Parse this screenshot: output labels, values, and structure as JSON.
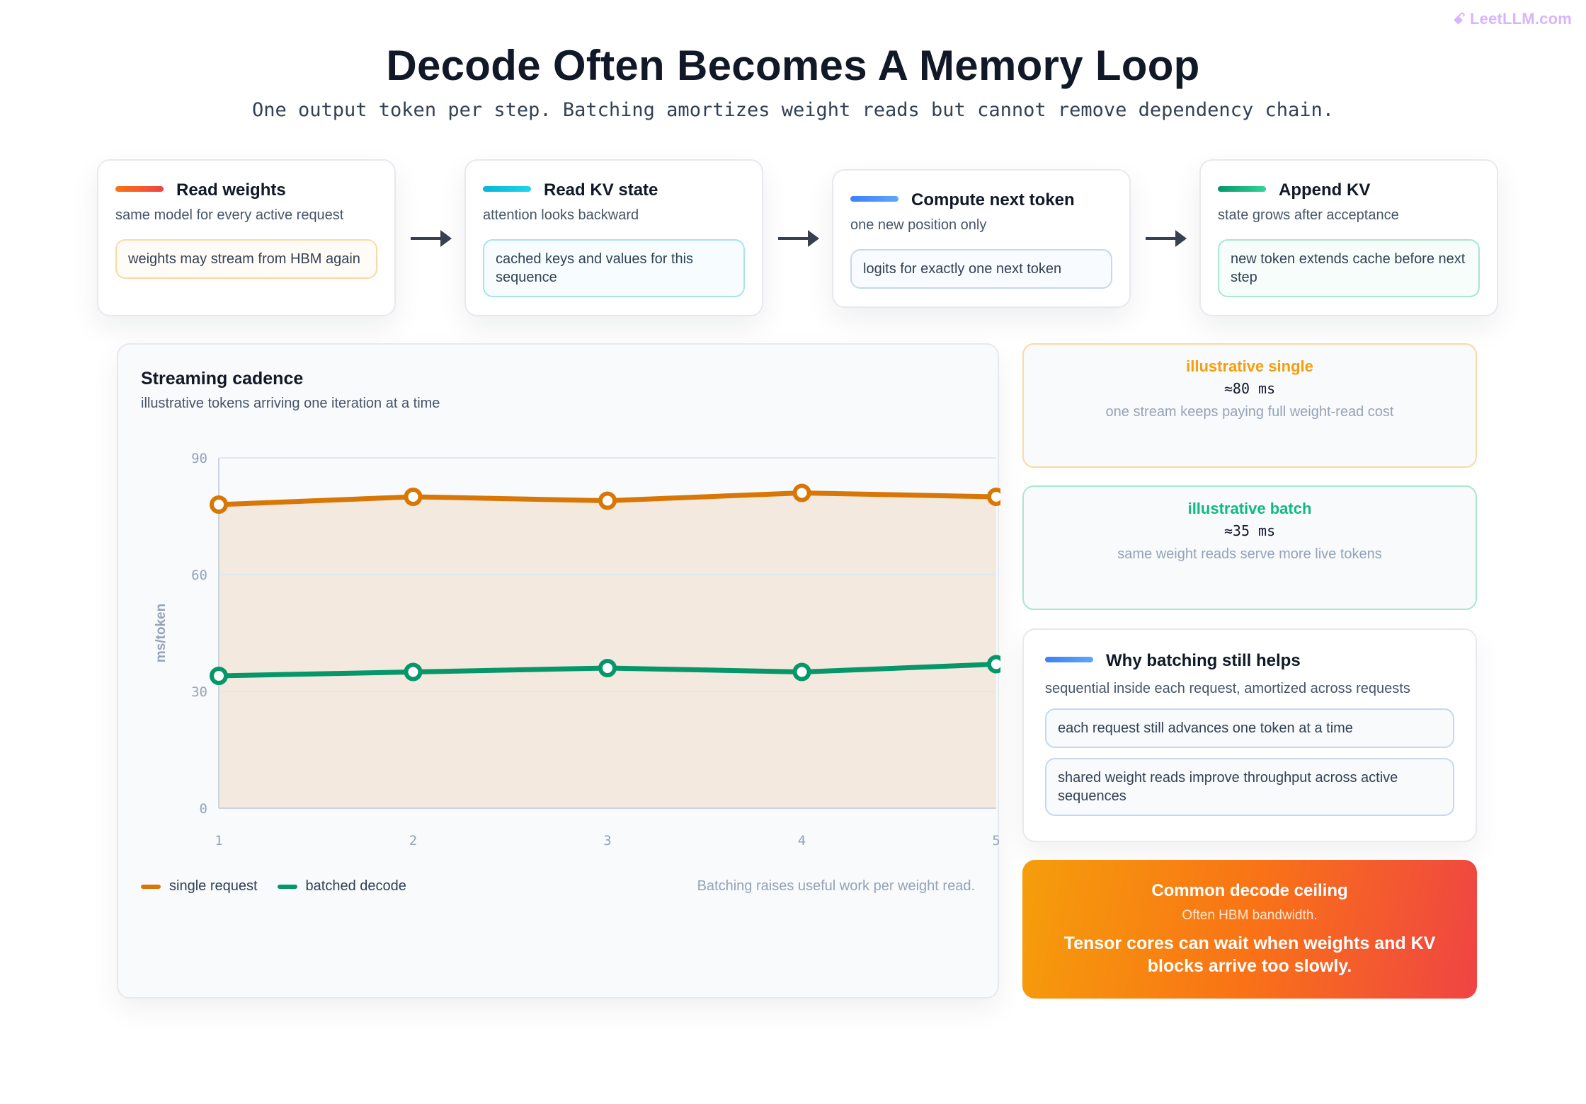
{
  "brand": {
    "name": "LeetLLM.com",
    "icon": "brain-icon"
  },
  "header": {
    "title": "Decode Often Becomes A Memory Loop",
    "subtitle": "One output token per step. Batching amortizes weight reads but cannot remove dependency chain."
  },
  "steps": [
    {
      "title": "Read weights",
      "desc": "same model for every active request",
      "note": "weights may stream from HBM again",
      "accent": "#f97316"
    },
    {
      "title": "Read KV state",
      "desc": "attention looks backward",
      "note": "cached keys and values for this sequence",
      "accent": "#06b6d4"
    },
    {
      "title": "Compute next token",
      "desc": "one new position only",
      "note": "logits for exactly one next token",
      "accent": "#3b82f6"
    },
    {
      "title": "Append KV",
      "desc": "state grows after acceptance",
      "note": "new token extends cache before next step",
      "accent": "#10b981"
    }
  ],
  "chart": {
    "title": "Streaming cadence",
    "subtitle": "illustrative tokens arriving one iteration at a time",
    "note": "Batching raises useful work per weight read."
  },
  "chart_data": {
    "type": "line",
    "x": [
      1,
      2,
      3,
      4,
      5
    ],
    "ylabel": "ms/token",
    "ylim": [
      0,
      90
    ],
    "yticks": [
      0,
      30,
      60,
      90
    ],
    "grid": true,
    "legend_position": "bottom-left",
    "series": [
      {
        "name": "single request",
        "values": [
          78,
          80,
          79,
          81,
          80
        ],
        "color": "#d97706",
        "fill": true
      },
      {
        "name": "batched decode",
        "values": [
          34,
          35,
          36,
          35,
          37
        ],
        "color": "#059669",
        "fill": false
      }
    ]
  },
  "stats": [
    {
      "label": "illustrative single",
      "value": "≈80 ms",
      "text": "one stream keeps paying full weight-read cost",
      "color": "#f59e0b",
      "border": "#fcd9a4"
    },
    {
      "label": "illustrative batch",
      "value": "≈35 ms",
      "text": "same weight reads serve more live tokens",
      "color": "#10b981",
      "border": "#a7e8cf"
    }
  ],
  "why": {
    "title": "Why batching still helps",
    "desc": "sequential inside each request, amortized across requests",
    "points": [
      "each request still advances one token at a time",
      "shared weight reads improve throughput across active sequences"
    ]
  },
  "ceiling": {
    "title": "Common decode ceiling",
    "subtitle": "Often HBM bandwidth.",
    "body": "Tensor cores can wait when weights and KV blocks arrive too slowly."
  }
}
